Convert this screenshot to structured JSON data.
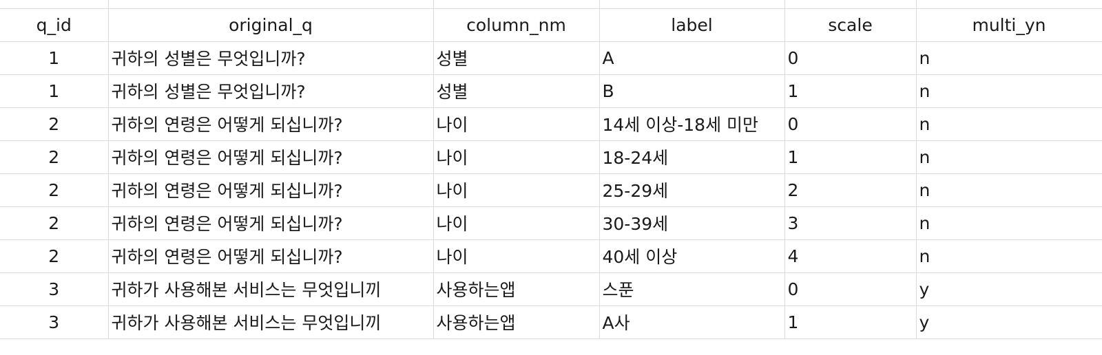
{
  "table": {
    "columns": [
      "q_id",
      "original_q",
      "column_nm",
      "label",
      "scale",
      "multi_yn"
    ],
    "rows": [
      [
        "1",
        "귀하의 성별은 무엇입니까?",
        "성별",
        "A",
        "0",
        "n"
      ],
      [
        "1",
        "귀하의 성별은 무엇입니까?",
        "성별",
        "B",
        "1",
        "n"
      ],
      [
        "2",
        "귀하의 연령은 어떻게 되십니까?",
        "나이",
        "14세 이상-18세 미만",
        "0",
        "n"
      ],
      [
        "2",
        "귀하의 연령은 어떻게 되십니까?",
        "나이",
        "18-24세",
        "1",
        "n"
      ],
      [
        "2",
        "귀하의 연령은 어떻게 되십니까?",
        "나이",
        "25-29세",
        "2",
        "n"
      ],
      [
        "2",
        "귀하의 연령은 어떻게 되십니까?",
        "나이",
        "30-39세",
        "3",
        "n"
      ],
      [
        "2",
        "귀하의 연령은 어떻게 되십니까?",
        "나이",
        "40세 이상",
        "4",
        "n"
      ],
      [
        "3",
        "귀하가 사용해본 서비스는 무엇입니끼",
        "사용하는앱",
        "스푼",
        "0",
        "y"
      ],
      [
        "3",
        "귀하가 사용해본 서비스는 무엇입니끼",
        "사용하는앱",
        "A사",
        "1",
        "y"
      ]
    ]
  }
}
